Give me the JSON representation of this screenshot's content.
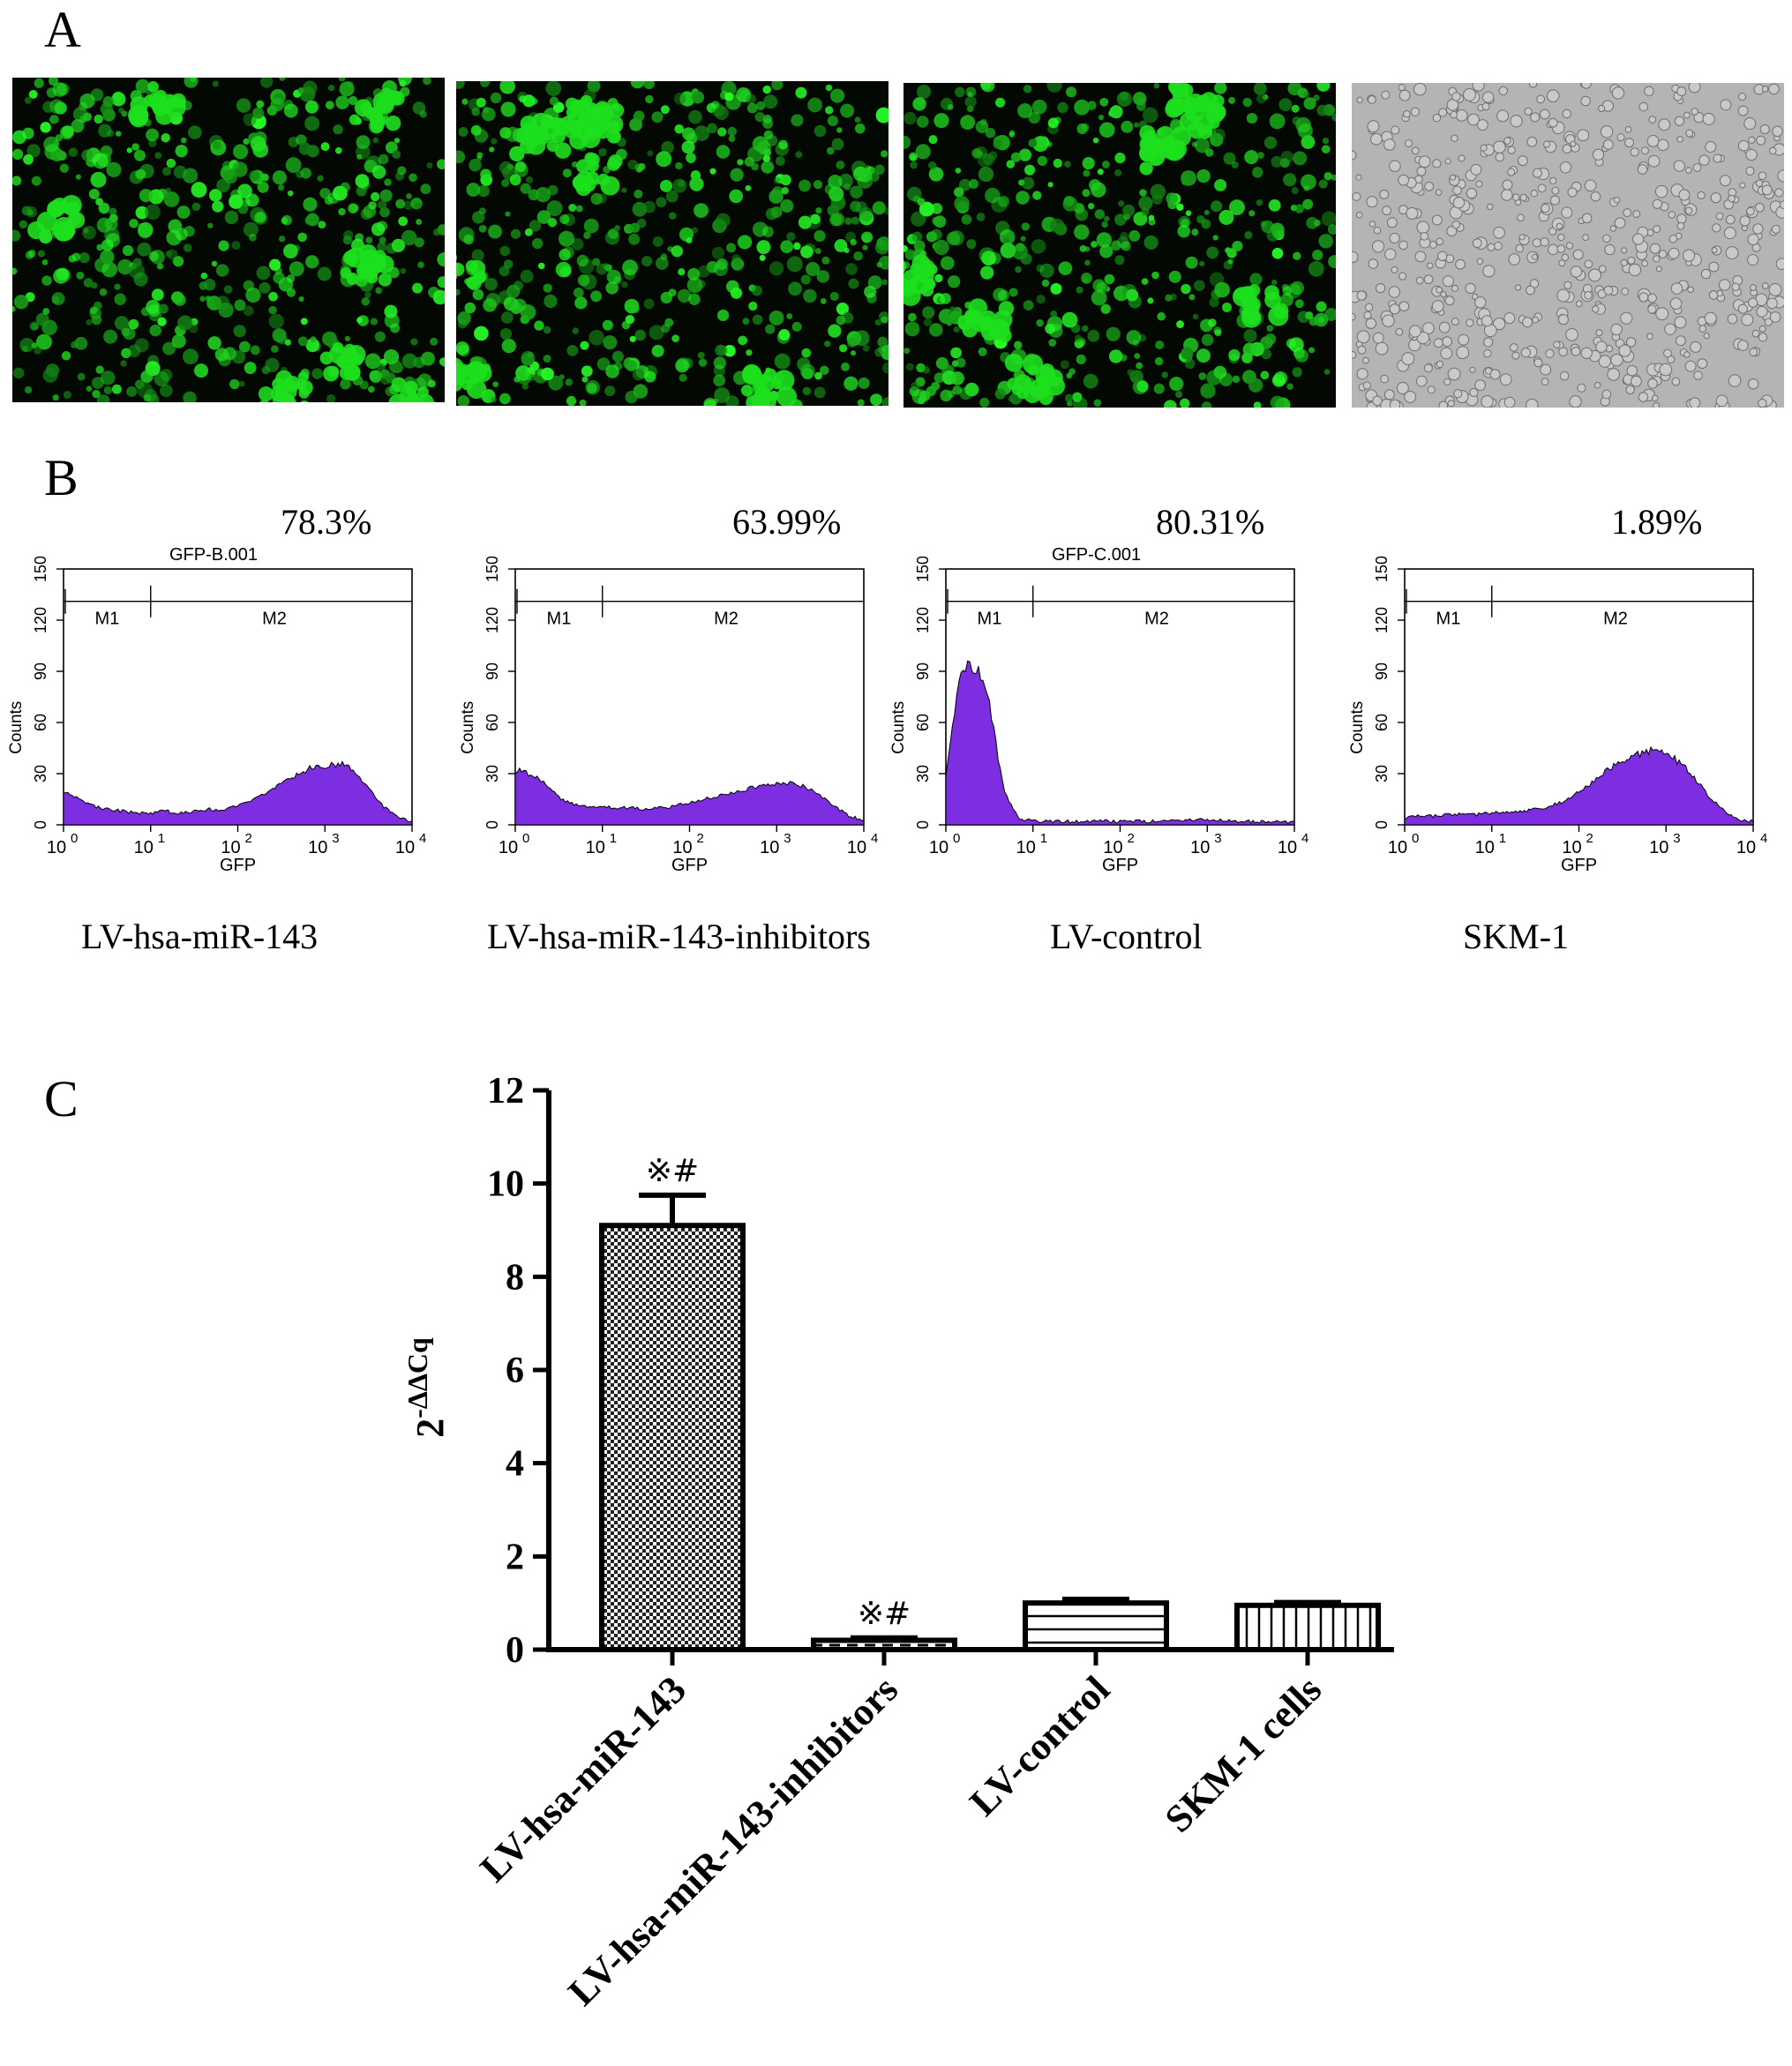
{
  "panels": {
    "A": {
      "letter": "A"
    },
    "B": {
      "letter": "B"
    },
    "C": {
      "letter": "C"
    }
  },
  "micrographs": [
    {
      "kind": "fluorescence",
      "color": "#1ee01e"
    },
    {
      "kind": "fluorescence",
      "color": "#1ee01e"
    },
    {
      "kind": "fluorescence",
      "color": "#1ee01e"
    },
    {
      "kind": "brightfield",
      "color": "#a8a8a8"
    }
  ],
  "histograms": [
    {
      "sample_label": "LV-hsa-miR-143",
      "percent": "78.3%",
      "file_label": "GFP-B.001",
      "ylabel": "Counts",
      "xlabel": "GFP",
      "gates": [
        "M1",
        "M2"
      ],
      "yticks": [
        "0",
        "30",
        "60",
        "90",
        "120",
        "150"
      ],
      "xticks": [
        "10",
        "10",
        "10",
        "10",
        "10"
      ],
      "xtick_exp": [
        "0",
        "1",
        "2",
        "3",
        "4"
      ],
      "profile": [
        20,
        16,
        11,
        9,
        8,
        7,
        7,
        8,
        7,
        8,
        9,
        9,
        11,
        14,
        19,
        24,
        29,
        33,
        35,
        36,
        32,
        22,
        11,
        4,
        2
      ]
    },
    {
      "sample_label": "LV-hsa-miR-143-inhibitors",
      "percent": "63.99%",
      "file_label": "",
      "ylabel": "Counts",
      "xlabel": "GFP",
      "gates": [
        "M1",
        "M2"
      ],
      "yticks": [
        "0",
        "30",
        "60",
        "90",
        "120",
        "150"
      ],
      "xticks": [
        "10",
        "10",
        "10",
        "10",
        "10"
      ],
      "xtick_exp": [
        "0",
        "1",
        "2",
        "3",
        "4"
      ],
      "profile": [
        32,
        30,
        24,
        16,
        12,
        11,
        11,
        10,
        10,
        9,
        10,
        11,
        13,
        15,
        17,
        19,
        21,
        23,
        24,
        25,
        22,
        17,
        11,
        5,
        3
      ]
    },
    {
      "sample_label": "LV-control",
      "percent": "80.31%",
      "file_label": "GFP-C.001",
      "ylabel": "Counts",
      "xlabel": "GFP",
      "gates": [
        "M1",
        "M2"
      ],
      "yticks": [
        "0",
        "30",
        "60",
        "90",
        "120",
        "150"
      ],
      "xticks": [
        "10",
        "10",
        "10",
        "10",
        "10"
      ],
      "xtick_exp": [
        "0",
        "1",
        "2",
        "3",
        "4"
      ],
      "profile": [
        30,
        90,
        94,
        70,
        20,
        4,
        2,
        2,
        2,
        2,
        2,
        2,
        2,
        2,
        2,
        2,
        2,
        3,
        3,
        3,
        2,
        2,
        2,
        2,
        1
      ]
    },
    {
      "sample_label": "SKM-1",
      "percent": "1.89%",
      "file_label": "",
      "ylabel": "Counts",
      "xlabel": "GFP",
      "gates": [
        "M1",
        "M2"
      ],
      "yticks": [
        "0",
        "30",
        "60",
        "90",
        "120",
        "150"
      ],
      "xticks": [
        "10",
        "10",
        "10",
        "10",
        "10"
      ],
      "xtick_exp": [
        "0",
        "1",
        "2",
        "3",
        "4"
      ],
      "profile": [
        4,
        5,
        5,
        6,
        6,
        6,
        7,
        7,
        8,
        9,
        11,
        14,
        19,
        25,
        32,
        37,
        41,
        44,
        42,
        36,
        27,
        16,
        8,
        3,
        2
      ]
    }
  ],
  "chart_data": {
    "type": "bar",
    "ylabel_base": "2",
    "ylabel_exp": "-ΔΔCq",
    "categories": [
      "LV-hsa-miR-143",
      "LV-hsa-miR-143-inhibitors",
      "LV-control",
      "SKM-1 cells"
    ],
    "values": [
      9.1,
      0.2,
      1.0,
      0.95
    ],
    "errors": [
      0.65,
      0.05,
      0.08,
      0.06
    ],
    "patterns": [
      "checker",
      "dashed",
      "hlines",
      "vlines"
    ],
    "annotations": [
      "※#",
      "※#",
      "",
      ""
    ],
    "ylim": [
      0,
      12
    ],
    "yticks": [
      0,
      2,
      4,
      6,
      8,
      10,
      12
    ],
    "grid": false
  }
}
